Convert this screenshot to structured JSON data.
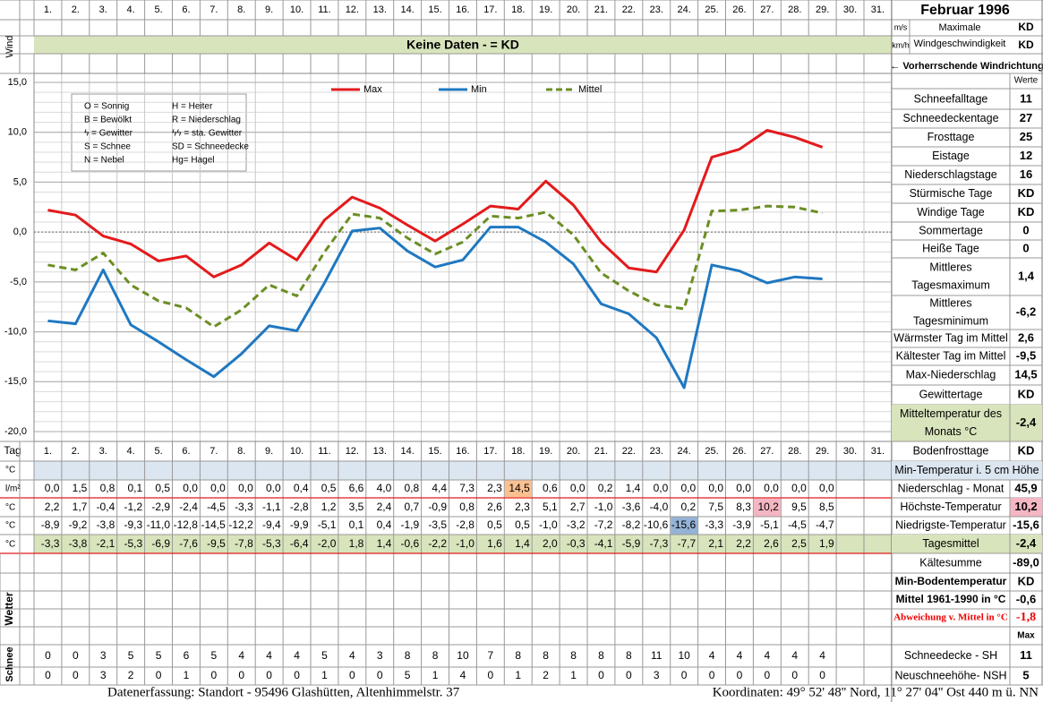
{
  "header": {
    "month": "Februar 1996",
    "wind_label": "Wind",
    "wind_units": [
      "m/s",
      "km/h"
    ],
    "wind_max_label": [
      "Maximale",
      "Windgeschwindigkeit"
    ],
    "wind_max_values": [
      "KD",
      "KD"
    ],
    "wind_direction": "← Vorherrschende Windrichtung",
    "no_data": "Keine Daten -  = KD"
  },
  "chart_data": {
    "type": "line",
    "categories": [
      "1.",
      "2.",
      "3.",
      "4.",
      "5.",
      "6.",
      "7.",
      "8.",
      "9.",
      "10.",
      "11.",
      "12.",
      "13.",
      "14.",
      "15.",
      "16.",
      "17.",
      "18.",
      "19.",
      "20.",
      "21.",
      "22.",
      "23.",
      "24.",
      "25.",
      "26.",
      "27.",
      "28.",
      "29.",
      "30.",
      "31."
    ],
    "series": [
      {
        "name": "Max",
        "color": "#e31a1c",
        "style": "solid",
        "values": [
          2.2,
          1.7,
          -0.4,
          -1.2,
          -2.9,
          -2.4,
          -4.5,
          -3.3,
          -1.1,
          -2.8,
          1.2,
          3.5,
          2.4,
          0.7,
          -0.9,
          0.8,
          2.6,
          2.3,
          5.1,
          2.7,
          -1.0,
          -3.6,
          -4.0,
          0.2,
          7.5,
          8.3,
          10.2,
          9.5,
          8.5,
          null,
          null
        ],
        "value_labels": [
          "2,2",
          "1,7",
          "-0,4",
          "-1,2",
          "-2,9",
          "-2,4",
          "-4,5",
          "-3,3",
          "-1,1",
          "-2,8",
          "1,2",
          "3,5",
          "2,4",
          "0,7",
          "-0,9",
          "0,8",
          "2,6",
          "2,3",
          "5,1",
          "2,7",
          "-1,0",
          "-3,6",
          "-4,0",
          "0,2",
          "7,5",
          "8,3",
          "10,2",
          "9,5",
          "8,5",
          null,
          null
        ]
      },
      {
        "name": "Min",
        "color": "#1f78c1",
        "style": "solid",
        "values": [
          -8.9,
          -9.2,
          -3.8,
          -9.3,
          -11.0,
          -12.8,
          -14.5,
          -12.2,
          -9.4,
          -9.9,
          -5.1,
          0.1,
          0.4,
          -1.9,
          -3.5,
          -2.8,
          0.5,
          0.5,
          -1.0,
          -3.2,
          -7.2,
          -8.2,
          -10.6,
          -15.6,
          -3.3,
          -3.9,
          -5.1,
          -4.5,
          -4.7,
          null,
          null
        ],
        "value_labels": [
          "-8,9",
          "-9,2",
          "-3,8",
          "-9,3",
          "-11,0",
          "-12,8",
          "-14,5",
          "-12,2",
          "-9,4",
          "-9,9",
          "-5,1",
          "0,1",
          "0,4",
          "-1,9",
          "-3,5",
          "-2,8",
          "0,5",
          "0,5",
          "-1,0",
          "-3,2",
          "-7,2",
          "-8,2",
          "-10,6",
          "-15,6",
          "-3,3",
          "-3,9",
          "-5,1",
          "-4,5",
          "-4,7",
          null,
          null
        ]
      },
      {
        "name": "Mittel",
        "color": "#6b8e23",
        "style": "dashed",
        "values": [
          -3.3,
          -3.8,
          -2.1,
          -5.3,
          -6.9,
          -7.6,
          -9.5,
          -7.8,
          -5.3,
          -6.4,
          -2.0,
          1.8,
          1.4,
          -0.6,
          -2.2,
          -1.0,
          1.6,
          1.4,
          2.0,
          -0.3,
          -4.1,
          -5.9,
          -7.3,
          -7.7,
          2.1,
          2.2,
          2.6,
          2.5,
          1.9,
          null,
          null
        ],
        "value_labels": [
          "-3,3",
          "-3,8",
          "-2,1",
          "-5,3",
          "-6,9",
          "-7,6",
          "-9,5",
          "-7,8",
          "-5,3",
          "-6,4",
          "-2,0",
          "1,8",
          "1,4",
          "-0,6",
          "-2,2",
          "-1,0",
          "1,6",
          "1,4",
          "2,0",
          "-0,3",
          "-4,1",
          "-5,9",
          "-7,3",
          "-7,7",
          "2,1",
          "2,2",
          "2,6",
          "2,5",
          "1,9",
          null,
          null
        ]
      }
    ],
    "ylim": [
      -20,
      15
    ],
    "yticks": [
      {
        "value": 15,
        "label": "15,0"
      },
      {
        "value": 10,
        "label": "10,0"
      },
      {
        "value": 5,
        "label": "5,0"
      },
      {
        "value": 0,
        "label": "0,0"
      },
      {
        "value": -5,
        "label": "-5,0"
      },
      {
        "value": -10,
        "label": "-10,0"
      },
      {
        "value": -15,
        "label": "-15,0"
      },
      {
        "value": -20,
        "label": "-20,0"
      }
    ],
    "grid": true,
    "legend": "top"
  },
  "weather_codes": [
    "O = Sonnig",
    "H = Heiter",
    "B = Bewölkt",
    "R = Niederschlag",
    "ϟ = Gewitter",
    "ϟϟ = sta. Gewitter",
    "S = Schnee",
    "SD = Schneedecke",
    "N = Nebel",
    "Hg= Hagel"
  ],
  "table": {
    "tag_label": "Tag",
    "units": [
      "°C",
      "l/m²",
      "°C",
      "°C",
      "°C"
    ],
    "precipitation": [
      "0,0",
      "1,5",
      "0,8",
      "0,1",
      "0,5",
      "0,0",
      "0,0",
      "0,0",
      "0,0",
      "0,4",
      "0,5",
      "6,6",
      "4,0",
      "0,8",
      "4,4",
      "7,3",
      "2,3",
      "14,5",
      "0,6",
      "0,0",
      "0,2",
      "1,4",
      "0,0",
      "0,0",
      "0,0",
      "0,0",
      "0,0",
      "0,0",
      "0,0"
    ],
    "weather_label": "Wetter",
    "snow_label": "Schnee",
    "snow_sh": [
      0,
      0,
      3,
      5,
      5,
      6,
      5,
      4,
      4,
      4,
      5,
      4,
      3,
      8,
      8,
      10,
      7,
      8,
      8,
      8,
      8,
      8,
      11,
      10,
      4,
      4,
      4,
      4,
      4
    ],
    "snow_nsh": [
      0,
      0,
      3,
      2,
      0,
      1,
      0,
      0,
      0,
      0,
      1,
      0,
      0,
      5,
      1,
      4,
      0,
      1,
      2,
      1,
      0,
      0,
      3,
      0,
      0,
      0,
      0,
      0,
      0
    ]
  },
  "stats": {
    "werte_label": "Werte",
    "rows": [
      {
        "label": [
          "Schneefalltage"
        ],
        "value": "11"
      },
      {
        "label": [
          "Schneedeckentage"
        ],
        "value": "27"
      },
      {
        "label": [
          "Frosttage"
        ],
        "value": "25"
      },
      {
        "label": [
          "Eistage"
        ],
        "value": "12"
      },
      {
        "label": [
          "Niederschlagstage"
        ],
        "value": "16"
      },
      {
        "label": [
          "Stürmische Tage"
        ],
        "value": "KD"
      },
      {
        "label": [
          "Windige Tage"
        ],
        "value": "KD"
      },
      {
        "label": [
          "Sommertage"
        ],
        "value": "0"
      },
      {
        "label": [
          "Heiße Tage"
        ],
        "value": "0"
      },
      {
        "label": [
          "Mittleres",
          "Tagesmaximum"
        ],
        "value": "1,4"
      },
      {
        "label": [
          "Mittleres",
          "Tagesminimum"
        ],
        "value": "-6,2"
      },
      {
        "label": [
          "Wärmster Tag im Mittel"
        ],
        "value": "2,6"
      },
      {
        "label": [
          "Kältester Tag im Mittel"
        ],
        "value": "-9,5"
      },
      {
        "label": [
          "Max-Niederschlag"
        ],
        "value": "14,5"
      },
      {
        "label": [
          "Gewittertage"
        ],
        "value": "KD"
      },
      {
        "label": [
          "Mitteltemperatur des",
          "Monats °C"
        ],
        "value": "-2,4"
      },
      {
        "label": [
          "Bodenfrosttage"
        ],
        "value": "KD"
      },
      {
        "label": [
          "Min-Temperatur i. 5 cm Höhe"
        ]
      },
      {
        "label": [
          "Niederschlag - Monat"
        ],
        "value": "45,9"
      },
      {
        "label": [
          "Höchste-Temperatur"
        ],
        "value": "10,2"
      },
      {
        "label": [
          "Niedrigste-Temperatur"
        ],
        "value": "-15,6"
      },
      {
        "label": [
          "Tagesmittel"
        ],
        "value": "-2,4"
      },
      {
        "label": [
          "Kältesumme"
        ],
        "value": "-89,0"
      },
      {
        "label": [
          "Min-Bodentemperatur"
        ],
        "value": "KD"
      },
      {
        "label": [
          "Mittel 1961-1990 in °C"
        ],
        "value": "-0,6"
      },
      {
        "label": [
          "Abweichung v. Mittel in °C"
        ],
        "value": "-1,8"
      },
      {
        "value": "Max"
      },
      {
        "label": [
          "Schneedecke -  SH"
        ],
        "value": "11"
      },
      {
        "label": [
          "Neuschneehöhe- NSH"
        ],
        "value": "5"
      }
    ]
  },
  "footer": {
    "left": "Datenerfassung:  Standort -  95496  Glashütten, Altenhimmelstr. 37",
    "right": "Koordinaten:  49° 52' 48'' Nord,  11° 27' 04'' Ost   440 m ü. NN"
  }
}
